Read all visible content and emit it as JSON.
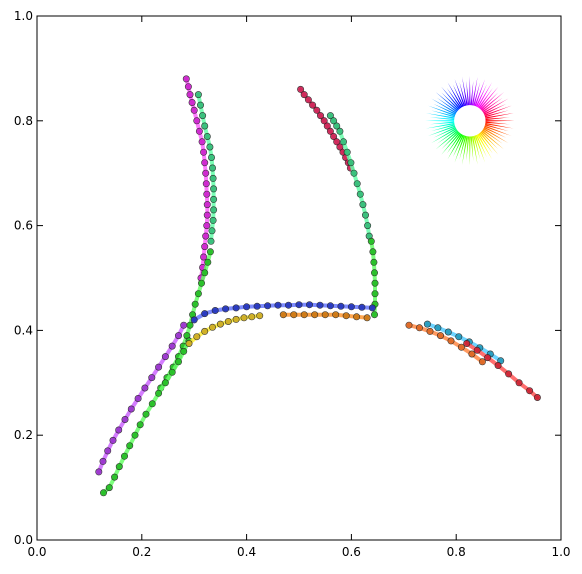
{
  "chart_data": {
    "type": "scatter",
    "title": "",
    "xlabel": "",
    "ylabel": "",
    "xlim": [
      0.0,
      1.0
    ],
    "ylim": [
      0.0,
      1.0
    ],
    "grid": false,
    "legend": "none",
    "x_ticks": [
      "0.0",
      "0.2",
      "0.4",
      "0.6",
      "0.8",
      "1.0"
    ],
    "y_ticks": [
      "0.0",
      "0.2",
      "0.4",
      "0.6",
      "0.8",
      "1.0"
    ],
    "color_wheel": {
      "center": [
        0.826,
        0.8
      ],
      "inner_radius": 0.03,
      "outer_radius": 0.085
    },
    "series": [
      {
        "color": "#cc22cc",
        "line": "#ff66ff",
        "points": [
          [
            0.285,
            0.88
          ],
          [
            0.289,
            0.865
          ],
          [
            0.292,
            0.85
          ],
          [
            0.296,
            0.835
          ],
          [
            0.3,
            0.82
          ],
          [
            0.305,
            0.8
          ],
          [
            0.31,
            0.78
          ],
          [
            0.315,
            0.76
          ],
          [
            0.318,
            0.74
          ],
          [
            0.32,
            0.72
          ],
          [
            0.322,
            0.7
          ],
          [
            0.323,
            0.68
          ],
          [
            0.324,
            0.66
          ],
          [
            0.325,
            0.64
          ],
          [
            0.325,
            0.62
          ],
          [
            0.324,
            0.6
          ],
          [
            0.322,
            0.58
          ],
          [
            0.32,
            0.56
          ],
          [
            0.318,
            0.54
          ],
          [
            0.316,
            0.52
          ],
          [
            0.313,
            0.5
          ]
        ]
      },
      {
        "color": "#33bb77",
        "line": "#66ffaa",
        "points": [
          [
            0.308,
            0.85
          ],
          [
            0.312,
            0.83
          ],
          [
            0.316,
            0.81
          ],
          [
            0.32,
            0.79
          ],
          [
            0.325,
            0.77
          ],
          [
            0.33,
            0.75
          ],
          [
            0.333,
            0.73
          ],
          [
            0.335,
            0.71
          ],
          [
            0.336,
            0.69
          ],
          [
            0.337,
            0.67
          ],
          [
            0.337,
            0.65
          ],
          [
            0.337,
            0.63
          ],
          [
            0.336,
            0.61
          ],
          [
            0.334,
            0.59
          ],
          [
            0.332,
            0.57
          ]
        ]
      },
      {
        "color": "#22bb22",
        "line": "#66ff66",
        "points": [
          [
            0.331,
            0.55
          ],
          [
            0.326,
            0.53
          ],
          [
            0.32,
            0.51
          ],
          [
            0.314,
            0.49
          ],
          [
            0.308,
            0.47
          ],
          [
            0.302,
            0.45
          ],
          [
            0.297,
            0.43
          ],
          [
            0.292,
            0.41
          ],
          [
            0.286,
            0.39
          ],
          [
            0.279,
            0.37
          ],
          [
            0.27,
            0.35
          ],
          [
            0.26,
            0.33
          ],
          [
            0.248,
            0.31
          ],
          [
            0.236,
            0.29
          ]
        ]
      },
      {
        "color": "#22bb22",
        "line": "#66ff66",
        "points": [
          [
            0.29,
            0.38
          ],
          [
            0.28,
            0.36
          ],
          [
            0.27,
            0.34
          ],
          [
            0.258,
            0.32
          ],
          [
            0.245,
            0.3
          ],
          [
            0.232,
            0.28
          ],
          [
            0.22,
            0.26
          ],
          [
            0.208,
            0.24
          ],
          [
            0.197,
            0.22
          ],
          [
            0.187,
            0.2
          ],
          [
            0.177,
            0.18
          ],
          [
            0.167,
            0.16
          ],
          [
            0.157,
            0.14
          ],
          [
            0.148,
            0.12
          ],
          [
            0.138,
            0.1
          ],
          [
            0.127,
            0.09
          ]
        ]
      },
      {
        "color": "#9933cc",
        "line": "#cc66ff",
        "points": [
          [
            0.28,
            0.41
          ],
          [
            0.27,
            0.39
          ],
          [
            0.258,
            0.37
          ],
          [
            0.245,
            0.35
          ],
          [
            0.232,
            0.33
          ],
          [
            0.219,
            0.31
          ],
          [
            0.206,
            0.29
          ],
          [
            0.193,
            0.27
          ],
          [
            0.18,
            0.25
          ],
          [
            0.168,
            0.23
          ],
          [
            0.156,
            0.21
          ],
          [
            0.145,
            0.19
          ],
          [
            0.135,
            0.17
          ],
          [
            0.126,
            0.15
          ],
          [
            0.118,
            0.13
          ]
        ]
      },
      {
        "color": "#cc2255",
        "line": "#ff6688",
        "points": [
          [
            0.503,
            0.86
          ],
          [
            0.51,
            0.85
          ],
          [
            0.518,
            0.84
          ],
          [
            0.526,
            0.83
          ],
          [
            0.534,
            0.82
          ],
          [
            0.541,
            0.81
          ],
          [
            0.548,
            0.8
          ],
          [
            0.554,
            0.79
          ],
          [
            0.56,
            0.78
          ],
          [
            0.566,
            0.77
          ],
          [
            0.572,
            0.76
          ],
          [
            0.578,
            0.75
          ],
          [
            0.584,
            0.74
          ],
          [
            0.589,
            0.73
          ],
          [
            0.594,
            0.72
          ],
          [
            0.598,
            0.71
          ]
        ]
      },
      {
        "color": "#33bb77",
        "line": "#66ffaa",
        "points": [
          [
            0.56,
            0.81
          ],
          [
            0.566,
            0.8
          ],
          [
            0.572,
            0.79
          ],
          [
            0.578,
            0.78
          ],
          [
            0.585,
            0.76
          ],
          [
            0.592,
            0.74
          ],
          [
            0.599,
            0.72
          ],
          [
            0.605,
            0.7
          ],
          [
            0.611,
            0.68
          ],
          [
            0.617,
            0.66
          ],
          [
            0.622,
            0.64
          ],
          [
            0.627,
            0.62
          ],
          [
            0.631,
            0.6
          ],
          [
            0.634,
            0.58
          ]
        ]
      },
      {
        "color": "#22bb22",
        "line": "#66ff66",
        "points": [
          [
            0.638,
            0.57
          ],
          [
            0.641,
            0.55
          ],
          [
            0.643,
            0.53
          ],
          [
            0.644,
            0.51
          ],
          [
            0.645,
            0.49
          ],
          [
            0.645,
            0.47
          ],
          [
            0.645,
            0.45
          ],
          [
            0.644,
            0.43
          ]
        ]
      },
      {
        "color": "#2233bb",
        "line": "#6677ff",
        "points": [
          [
            0.3,
            0.42
          ],
          [
            0.32,
            0.432
          ],
          [
            0.34,
            0.438
          ],
          [
            0.36,
            0.441
          ],
          [
            0.38,
            0.443
          ],
          [
            0.4,
            0.445
          ],
          [
            0.42,
            0.446
          ],
          [
            0.44,
            0.447
          ],
          [
            0.46,
            0.448
          ],
          [
            0.48,
            0.448
          ],
          [
            0.5,
            0.449
          ],
          [
            0.52,
            0.449
          ],
          [
            0.54,
            0.448
          ],
          [
            0.56,
            0.447
          ],
          [
            0.58,
            0.446
          ],
          [
            0.6,
            0.445
          ],
          [
            0.62,
            0.444
          ],
          [
            0.64,
            0.443
          ]
        ]
      },
      {
        "color": "#ccaa22",
        "line": "#ffee33",
        "points": [
          [
            0.29,
            0.375
          ],
          [
            0.305,
            0.388
          ],
          [
            0.32,
            0.398
          ],
          [
            0.335,
            0.406
          ],
          [
            0.35,
            0.412
          ],
          [
            0.365,
            0.417
          ],
          [
            0.38,
            0.421
          ],
          [
            0.395,
            0.424
          ],
          [
            0.41,
            0.426
          ],
          [
            0.425,
            0.428
          ]
        ]
      },
      {
        "color": "#cc7711",
        "line": "#ff9933",
        "points": [
          [
            0.47,
            0.43
          ],
          [
            0.49,
            0.43
          ],
          [
            0.51,
            0.43
          ],
          [
            0.53,
            0.43
          ],
          [
            0.55,
            0.43
          ],
          [
            0.57,
            0.43
          ],
          [
            0.59,
            0.428
          ],
          [
            0.61,
            0.426
          ],
          [
            0.63,
            0.424
          ]
        ]
      },
      {
        "color": "#dd6622",
        "line": "#ff8844",
        "points": [
          [
            0.71,
            0.41
          ],
          [
            0.73,
            0.405
          ],
          [
            0.75,
            0.398
          ],
          [
            0.77,
            0.39
          ],
          [
            0.79,
            0.38
          ],
          [
            0.81,
            0.368
          ],
          [
            0.83,
            0.355
          ],
          [
            0.85,
            0.34
          ]
        ]
      },
      {
        "color": "#2299bb",
        "line": "#55ccff",
        "points": [
          [
            0.745,
            0.412
          ],
          [
            0.765,
            0.405
          ],
          [
            0.785,
            0.397
          ],
          [
            0.805,
            0.388
          ],
          [
            0.825,
            0.378
          ],
          [
            0.845,
            0.367
          ],
          [
            0.865,
            0.355
          ],
          [
            0.885,
            0.342
          ]
        ]
      },
      {
        "color": "#cc2233",
        "line": "#ff5555",
        "points": [
          [
            0.82,
            0.375
          ],
          [
            0.84,
            0.362
          ],
          [
            0.86,
            0.348
          ],
          [
            0.88,
            0.333
          ],
          [
            0.9,
            0.317
          ],
          [
            0.92,
            0.3
          ],
          [
            0.94,
            0.285
          ],
          [
            0.955,
            0.272
          ]
        ]
      }
    ]
  }
}
